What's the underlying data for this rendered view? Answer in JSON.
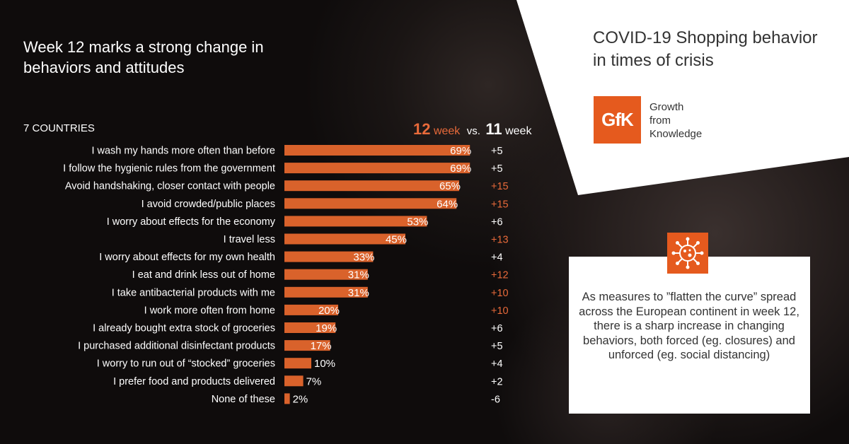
{
  "headline": "Week 12 marks a strong change in behaviors and attitudes",
  "subhead": "7 COUNTRIES",
  "legend": {
    "a_num": "12",
    "a_unit": "week",
    "vs": "vs.",
    "b_num": "11",
    "b_unit": "week"
  },
  "panel": {
    "title": "COVID-19 Shopping behavior in times of crisis",
    "logo": "GfK",
    "logo_lines": [
      "Growth",
      "from",
      "Knowledge"
    ],
    "note": "As measures to ”flatten the curve” spread across the European continent in week 12, there is a sharp increase in changing behaviors, both forced (eg. closures) and unforced (eg. social distancing)"
  },
  "colors": {
    "bar": "#d9622b",
    "highlight": "#e86a3a",
    "panel": "#ffffff",
    "logo": "#e55a1e"
  },
  "icons": [
    "virus-icon"
  ],
  "chart_data": {
    "type": "bar",
    "orientation": "horizontal",
    "categories": [
      "I wash my hands more often than before",
      "I follow the hygienic rules from the government",
      "Avoid handshaking, closer contact with people",
      "I avoid crowded/public places",
      "I worry about effects for the economy",
      "I travel less",
      "I worry about effects for my own health",
      "I eat and drink less out of home",
      "I take antibacterial products with me",
      "I work more often from home",
      "I already bought extra stock of groceries",
      "I purchased additional disinfectant products",
      "I worry to run out of “stocked” groceries",
      "I prefer food and products delivered",
      "None of these"
    ],
    "values": [
      69,
      69,
      65,
      64,
      53,
      45,
      33,
      31,
      31,
      20,
      19,
      17,
      10,
      7,
      2
    ],
    "value_labels": [
      "69%",
      "69%",
      "65%",
      "64%",
      "53%",
      "45%",
      "33%",
      "31%",
      "31%",
      "20%",
      "19%",
      "17%",
      "10%",
      "7%",
      "2%"
    ],
    "change_labels": [
      "+5",
      "+5",
      "+15",
      "+15",
      "+6",
      "+13",
      "+4",
      "+12",
      "+10",
      "+10",
      "+6",
      "+5",
      "+4",
      "+2",
      "-6"
    ],
    "change_highlight": [
      false,
      false,
      true,
      true,
      false,
      true,
      false,
      true,
      true,
      true,
      false,
      false,
      false,
      false,
      false
    ]
  }
}
